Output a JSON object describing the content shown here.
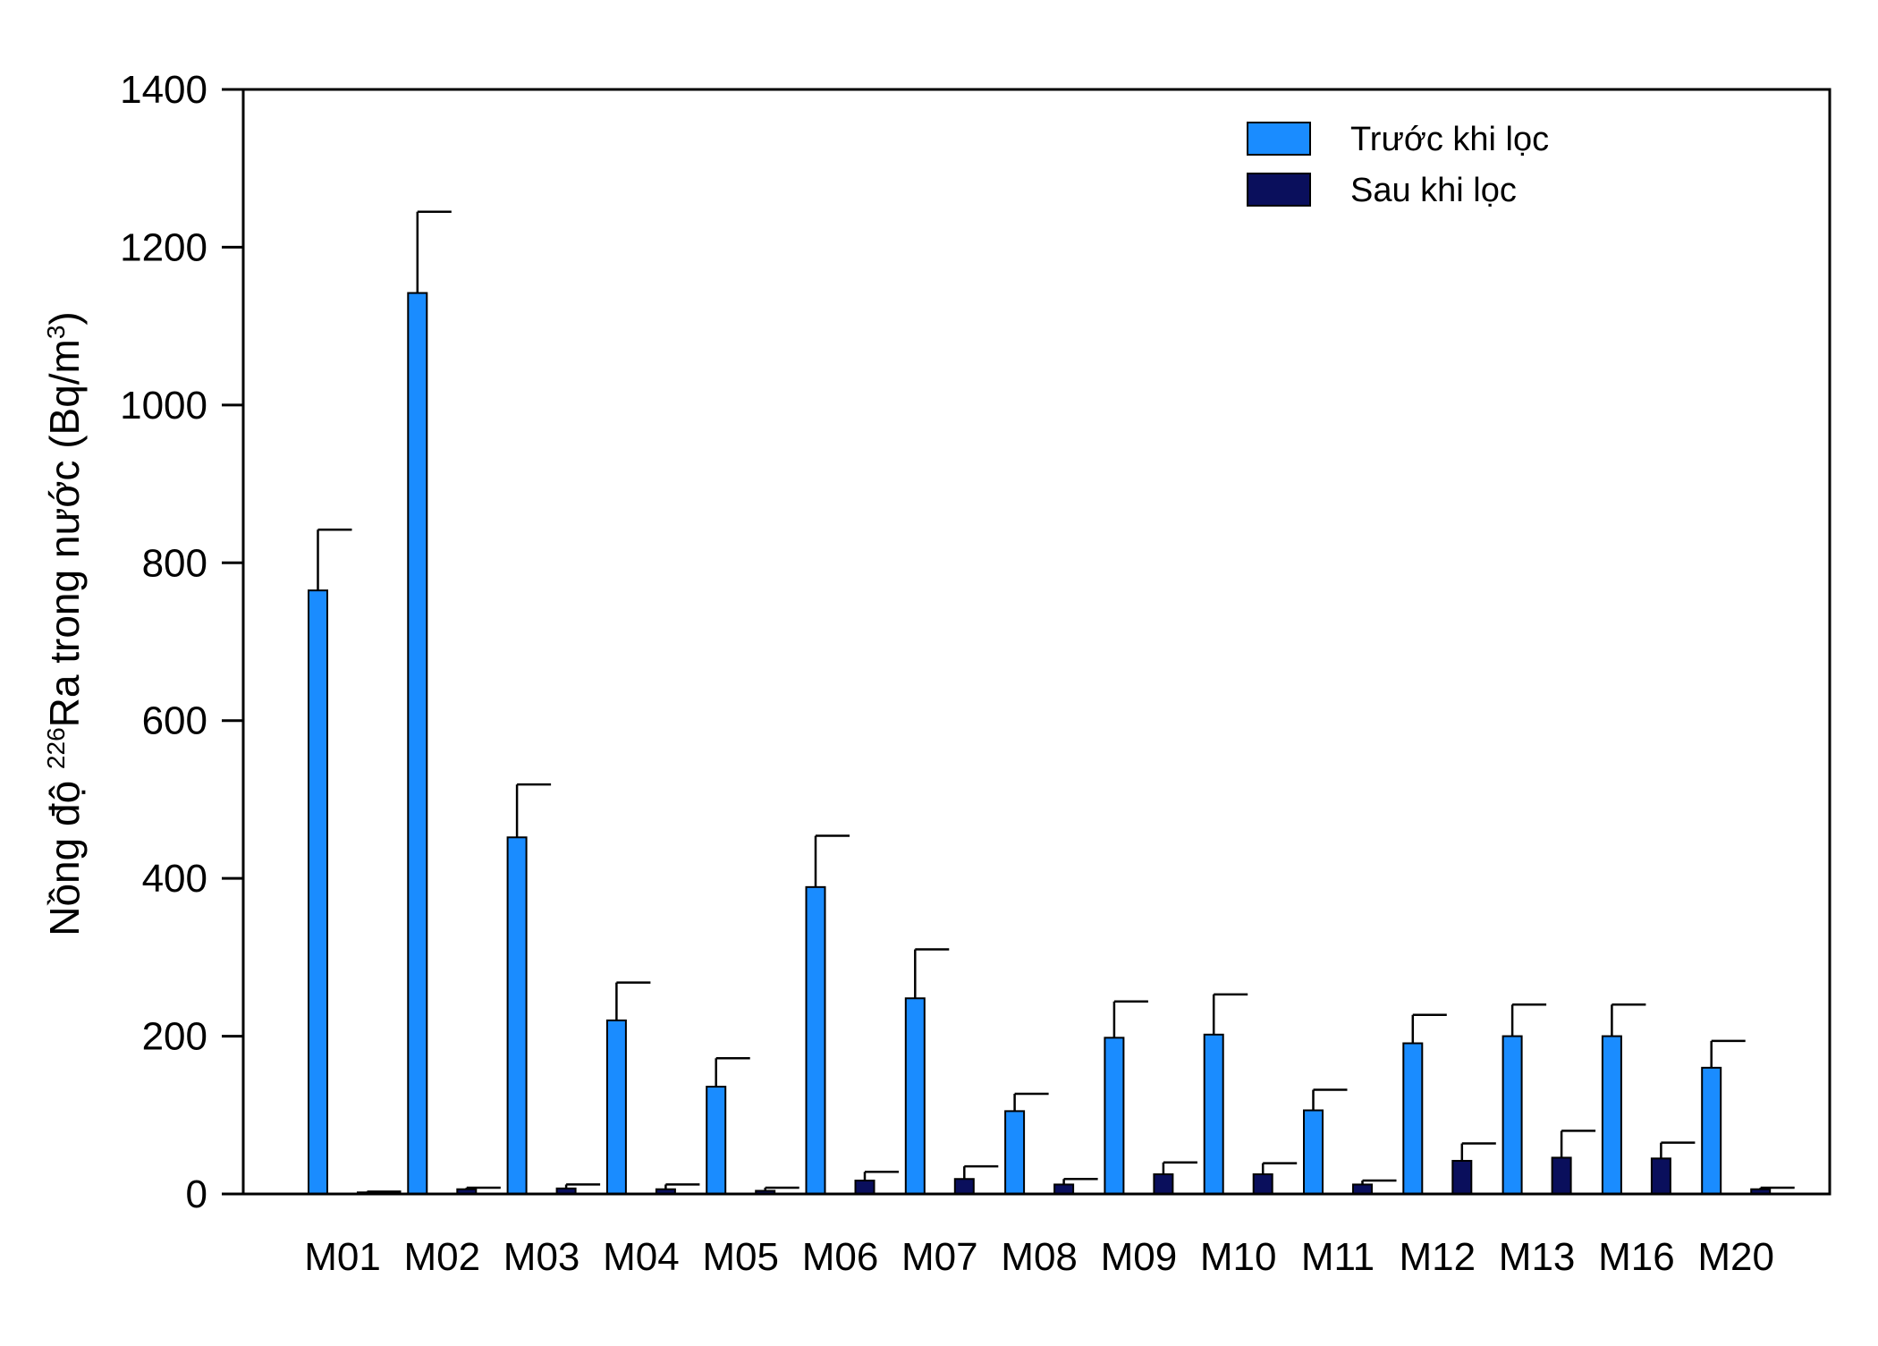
{
  "chart_data": {
    "type": "bar",
    "categories": [
      "M01",
      "M02",
      "M03",
      "M04",
      "M05",
      "M06",
      "M07",
      "M08",
      "M09",
      "M10",
      "M11",
      "M12",
      "M13",
      "M16",
      "M20"
    ],
    "series": [
      {
        "name": "Trước khi lọc",
        "color": "#1a8cff",
        "values": [
          765,
          1142,
          452,
          220,
          136,
          389,
          248,
          105,
          198,
          202,
          106,
          191,
          200,
          200,
          160
        ],
        "errors": [
          77,
          103,
          67,
          48,
          36,
          65,
          62,
          22,
          46,
          51,
          26,
          36,
          40,
          40,
          34
        ]
      },
      {
        "name": "Sau khi lọc",
        "color": "#0a0f5c",
        "values": [
          2,
          6,
          7,
          6,
          4,
          17,
          19,
          12,
          25,
          25,
          12,
          42,
          46,
          45,
          6
        ],
        "errors": [
          1,
          2,
          5,
          6,
          4,
          11,
          16,
          7,
          15,
          14,
          5,
          22,
          34,
          20,
          2
        ]
      }
    ],
    "ylabel_parts": {
      "pre": "Nồng độ ",
      "sup1": "226",
      "mid": "Ra trong nước (Bq/m",
      "sup2": "3",
      "post": ")"
    },
    "xlabel": "",
    "ylim": [
      0,
      1400
    ],
    "yticks": [
      0,
      200,
      400,
      600,
      800,
      1000,
      1200,
      1400
    ],
    "grid": false,
    "legend_position": "top-right"
  }
}
